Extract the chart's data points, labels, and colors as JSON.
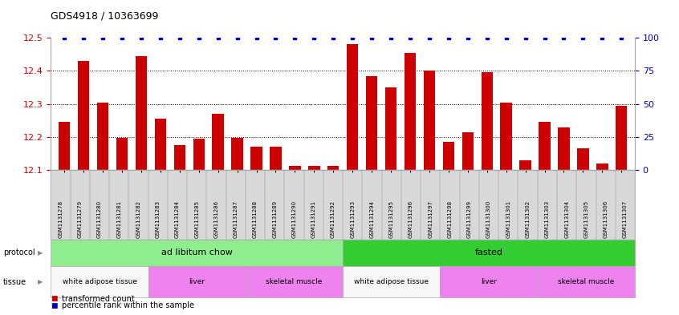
{
  "title": "GDS4918 / 10363699",
  "samples": [
    "GSM1131278",
    "GSM1131279",
    "GSM1131280",
    "GSM1131281",
    "GSM1131282",
    "GSM1131283",
    "GSM1131284",
    "GSM1131285",
    "GSM1131286",
    "GSM1131287",
    "GSM1131288",
    "GSM1131289",
    "GSM1131290",
    "GSM1131291",
    "GSM1131292",
    "GSM1131293",
    "GSM1131294",
    "GSM1131295",
    "GSM1131296",
    "GSM1131297",
    "GSM1131298",
    "GSM1131299",
    "GSM1131300",
    "GSM1131301",
    "GSM1131302",
    "GSM1131303",
    "GSM1131304",
    "GSM1131305",
    "GSM1131306",
    "GSM1131307"
  ],
  "bar_values": [
    12.245,
    12.43,
    12.305,
    12.198,
    12.445,
    12.255,
    12.175,
    12.195,
    12.27,
    12.197,
    12.17,
    12.17,
    12.113,
    12.113,
    12.113,
    12.48,
    12.385,
    12.35,
    12.455,
    12.4,
    12.185,
    12.215,
    12.395,
    12.305,
    12.13,
    12.245,
    12.23,
    12.165,
    12.12,
    12.295
  ],
  "percentile_values": [
    100,
    100,
    100,
    100,
    100,
    100,
    100,
    100,
    100,
    100,
    100,
    100,
    100,
    100,
    100,
    100,
    100,
    100,
    100,
    100,
    100,
    100,
    100,
    100,
    100,
    100,
    100,
    100,
    100,
    100
  ],
  "bar_color": "#cc0000",
  "percentile_color": "#0000cc",
  "ylim_left": [
    12.1,
    12.5
  ],
  "ylim_right": [
    0,
    100
  ],
  "yticks_left": [
    12.1,
    12.2,
    12.3,
    12.4,
    12.5
  ],
  "yticks_right": [
    0,
    25,
    50,
    75,
    100
  ],
  "proto_groups": [
    {
      "label": "ad libitum chow",
      "start": 0,
      "end": 15,
      "color": "#90ee90"
    },
    {
      "label": "fasted",
      "start": 15,
      "end": 30,
      "color": "#33cc33"
    }
  ],
  "tissue_groups": [
    {
      "label": "white adipose tissue",
      "start": 0,
      "end": 5,
      "color": "#f8f8f8"
    },
    {
      "label": "liver",
      "start": 5,
      "end": 10,
      "color": "#ee82ee"
    },
    {
      "label": "skeletal muscle",
      "start": 10,
      "end": 15,
      "color": "#ee82ee"
    },
    {
      "label": "white adipose tissue",
      "start": 15,
      "end": 20,
      "color": "#f8f8f8"
    },
    {
      "label": "liver",
      "start": 20,
      "end": 25,
      "color": "#ee82ee"
    },
    {
      "label": "skeletal muscle",
      "start": 25,
      "end": 30,
      "color": "#ee82ee"
    }
  ],
  "bg_color": "#ffffff",
  "chart_bg": "#ffffff",
  "xtick_bg": "#d8d8d8",
  "tick_label_color_left": "#cc0000",
  "tick_label_color_right": "#0000cc"
}
